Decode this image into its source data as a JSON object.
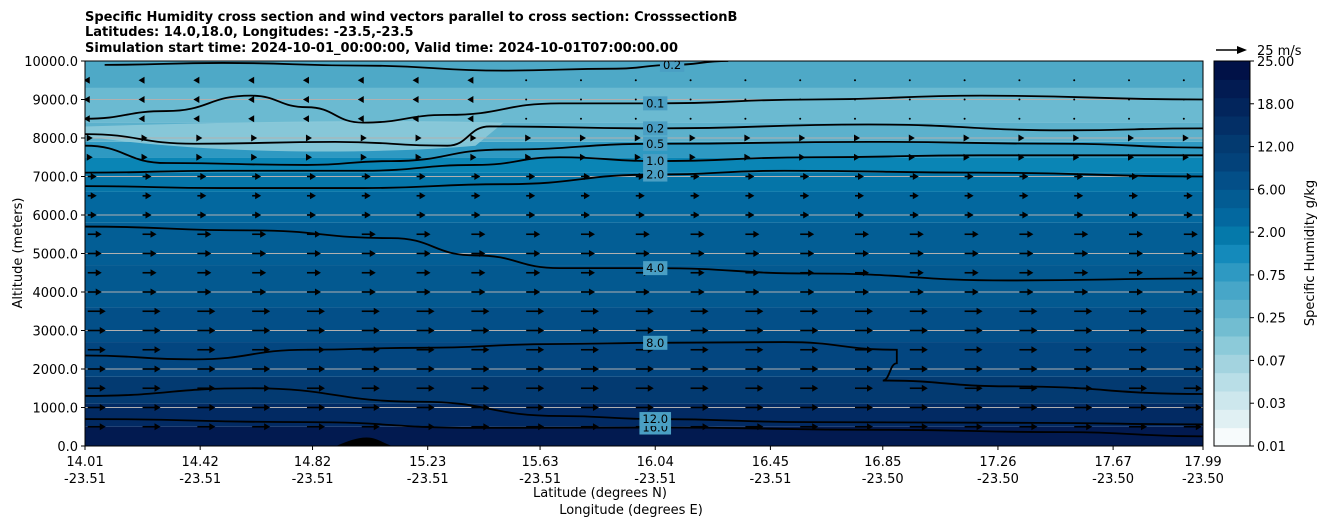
{
  "chart_data": {
    "type": "contour",
    "title_lines": [
      "Specific Humidity cross section and wind vectors parallel to cross section: CrosssectionB",
      "Latitudes: 14.0,18.0, Longitudes: -23.5,-23.5",
      "Simulation start time: 2024-10-01_00:00:00, Valid time: 2024-10-01T07:00:00.00"
    ],
    "ylabel": "Altitude (meters)",
    "xlabel_lat": "Latitude (degrees N)",
    "xlabel_lon": "Longitude (degrees E)",
    "ylim": [
      0,
      10000
    ],
    "yticks": [
      "0.0",
      "1000.0",
      "2000.0",
      "3000.0",
      "4000.0",
      "5000.0",
      "6000.0",
      "7000.0",
      "8000.0",
      "9000.0",
      "10000.0"
    ],
    "xtick_lat": [
      "14.01",
      "14.42",
      "14.82",
      "15.23",
      "15.63",
      "16.04",
      "16.45",
      "16.85",
      "17.26",
      "17.67",
      "17.99"
    ],
    "xtick_lon": [
      "-23.51",
      "-23.51",
      "-23.51",
      "-23.51",
      "-23.51",
      "-23.51",
      "-23.51",
      "-23.50",
      "-23.50",
      "-23.50",
      "-23.50"
    ],
    "colorbar_label": "Specific Humidity g/kg",
    "colorbar_ticks": [
      "0.01",
      "0.03",
      "0.07",
      "0.25",
      "0.75",
      "2.00",
      "6.00",
      "12.00",
      "18.00",
      "25.00"
    ],
    "colorbar_colors": [
      "#f7fbfc",
      "#e0f0f3",
      "#cde7ed",
      "#b9dee7",
      "#a3d3df",
      "#8ccad9",
      "#72bdd1",
      "#5cb1cc",
      "#47a6c8",
      "#2e99c2",
      "#148abb",
      "#0579aa",
      "#03689f",
      "#035c93",
      "#034f88",
      "#03427a",
      "#033a70",
      "#032f66",
      "#02255c",
      "#021b52",
      "#011147"
    ],
    "quiver_key_label": "25 m/s",
    "contours": [
      {
        "label": "16.0",
        "points": [
          [
            14.01,
            700
          ],
          [
            14.8,
            620
          ],
          [
            15.4,
            470
          ],
          [
            16.04,
            480
          ],
          [
            16.85,
            420
          ],
          [
            17.5,
            360
          ],
          [
            17.99,
            250
          ]
        ]
      },
      {
        "label": "12.0",
        "points": [
          [
            14.01,
            1300
          ],
          [
            14.6,
            1500
          ],
          [
            15.2,
            1150
          ],
          [
            15.7,
            780
          ],
          [
            16.04,
            700
          ],
          [
            16.6,
            620
          ],
          [
            17.4,
            600
          ],
          [
            17.99,
            560
          ]
        ]
      },
      {
        "label": "8.0",
        "points": [
          [
            14.01,
            2350
          ],
          [
            14.4,
            2250
          ],
          [
            14.8,
            2500
          ],
          [
            15.2,
            2550
          ],
          [
            15.7,
            2650
          ],
          [
            16.04,
            2680
          ],
          [
            16.5,
            2700
          ],
          [
            16.9,
            2500
          ],
          [
            16.9,
            2150
          ],
          [
            16.85,
            1700
          ],
          [
            17.3,
            1550
          ],
          [
            17.99,
            1350
          ]
        ]
      },
      {
        "label": "4.0",
        "points": [
          [
            14.01,
            5700
          ],
          [
            14.6,
            5600
          ],
          [
            15.1,
            5400
          ],
          [
            15.4,
            4950
          ],
          [
            15.7,
            4620
          ],
          [
            16.04,
            4620
          ],
          [
            16.6,
            4480
          ],
          [
            17.3,
            4300
          ],
          [
            17.99,
            4350
          ]
        ]
      },
      {
        "label": "2.0",
        "points": [
          [
            14.01,
            6750
          ],
          [
            14.5,
            6700
          ],
          [
            15.0,
            6700
          ],
          [
            15.5,
            6800
          ],
          [
            16.04,
            7050
          ],
          [
            16.5,
            7150
          ],
          [
            17.2,
            7100
          ],
          [
            17.99,
            7000
          ]
        ]
      },
      {
        "label": "1.0",
        "points": [
          [
            14.01,
            7100
          ],
          [
            14.5,
            7150
          ],
          [
            15.0,
            7150
          ],
          [
            15.4,
            7300
          ],
          [
            15.7,
            7500
          ],
          [
            16.04,
            7400
          ],
          [
            16.6,
            7500
          ],
          [
            17.2,
            7550
          ],
          [
            17.99,
            7550
          ]
        ]
      },
      {
        "label": "0.5",
        "points": [
          [
            14.01,
            7800
          ],
          [
            14.3,
            7350
          ],
          [
            14.8,
            7300
          ],
          [
            15.1,
            7400
          ],
          [
            15.5,
            7700
          ],
          [
            16.04,
            7850
          ],
          [
            16.8,
            7900
          ],
          [
            17.5,
            7850
          ],
          [
            17.99,
            7750
          ]
        ]
      },
      {
        "label": "0.2",
        "points": [
          [
            14.01,
            8100
          ],
          [
            14.4,
            7850
          ],
          [
            14.9,
            7900
          ],
          [
            15.3,
            7800
          ],
          [
            15.45,
            8300
          ],
          [
            16.04,
            8250
          ],
          [
            16.8,
            8350
          ],
          [
            17.5,
            8200
          ],
          [
            17.99,
            8250
          ]
        ]
      },
      {
        "label": "0.2",
        "points": [
          [
            14.08,
            9900
          ],
          [
            14.5,
            9950
          ],
          [
            15.0,
            9880
          ],
          [
            15.5,
            9750
          ],
          [
            15.9,
            9800
          ],
          [
            16.1,
            9900
          ],
          [
            16.3,
            10000
          ]
        ]
      },
      {
        "label": "0.1",
        "points": [
          [
            14.01,
            8500
          ],
          [
            14.3,
            8700
          ],
          [
            14.6,
            9100
          ],
          [
            14.8,
            8800
          ],
          [
            15.0,
            8400
          ],
          [
            15.3,
            8600
          ],
          [
            15.7,
            8900
          ],
          [
            16.04,
            8900
          ],
          [
            16.6,
            9000
          ],
          [
            17.2,
            9100
          ],
          [
            17.99,
            9000
          ]
        ]
      }
    ]
  }
}
